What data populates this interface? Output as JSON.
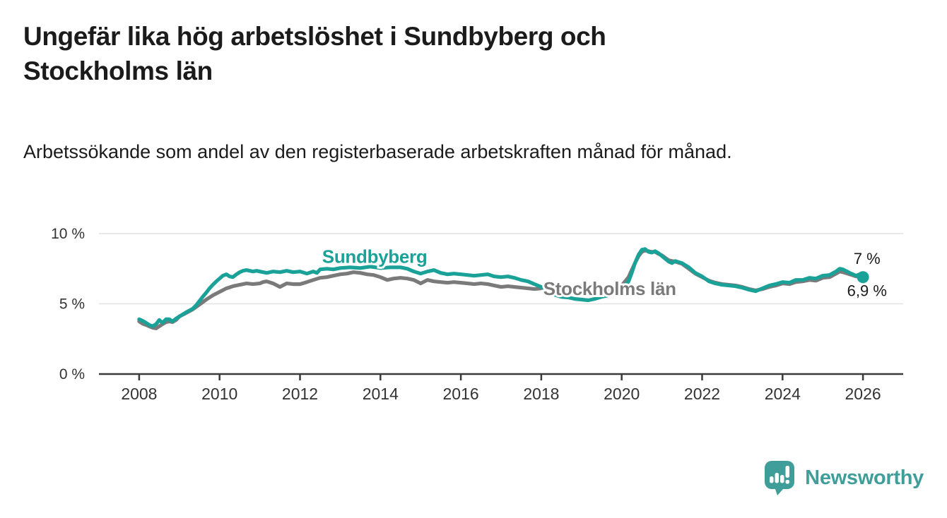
{
  "header": {
    "title": "Ungefär lika hög arbetslöshet i Sundbyberg och Stockholms län",
    "subtitle": "Arbetssökande som andel av den registerbaserade arbetskraften månad för månad."
  },
  "branding": {
    "name": "Newsworthy",
    "color": "#3f9e99"
  },
  "colors": {
    "background": "#ffffff",
    "teal": "#1aa299",
    "gray": "#7a7a7a",
    "text": "#1b1b1b",
    "axis": "#3a3a3a",
    "tick_label": "#333333",
    "gridline": "#e2e2e2",
    "annotation": "#1b1b1b"
  },
  "chart_data": {
    "type": "line",
    "title": "Ungefär lika hög arbetslöshet i Sundbyberg och Stockholms län",
    "subtitle": "Arbetssökande som andel av den registerbaserade arbetskraften månad för månad.",
    "unit": "%",
    "legend_position": "inline-labels",
    "grid": "horizontal-only",
    "x_axis": {
      "range": [
        2007,
        2027
      ],
      "ticks": [
        2008,
        2010,
        2012,
        2014,
        2016,
        2018,
        2020,
        2022,
        2024,
        2026
      ]
    },
    "y_axis": {
      "range": [
        0,
        10.5
      ],
      "ticks": [
        0,
        5,
        10
      ],
      "tick_labels": [
        "0 %",
        "5 %",
        "10 %"
      ]
    },
    "series": [
      {
        "name": "Stockholms län",
        "color": "#7a7a7a",
        "latest_value": 7.0,
        "end_label": "7 %",
        "end_label_pos": [
          2026.1,
          7.85
        ],
        "end_dot": false,
        "label_pos": [
          2018.05,
          5.62
        ],
        "label_anchor": "start",
        "points": [
          [
            2008.0,
            3.75
          ],
          [
            2008.08,
            3.6
          ],
          [
            2008.17,
            3.5
          ],
          [
            2008.25,
            3.4
          ],
          [
            2008.33,
            3.3
          ],
          [
            2008.42,
            3.25
          ],
          [
            2008.5,
            3.4
          ],
          [
            2008.58,
            3.55
          ],
          [
            2008.67,
            3.7
          ],
          [
            2008.75,
            3.75
          ],
          [
            2008.83,
            3.7
          ],
          [
            2008.92,
            3.85
          ],
          [
            2009.0,
            4.1
          ],
          [
            2009.17,
            4.35
          ],
          [
            2009.33,
            4.6
          ],
          [
            2009.5,
            4.95
          ],
          [
            2009.67,
            5.3
          ],
          [
            2009.83,
            5.6
          ],
          [
            2010.0,
            5.85
          ],
          [
            2010.17,
            6.1
          ],
          [
            2010.33,
            6.25
          ],
          [
            2010.5,
            6.35
          ],
          [
            2010.67,
            6.45
          ],
          [
            2010.83,
            6.4
          ],
          [
            2011.0,
            6.45
          ],
          [
            2011.08,
            6.55
          ],
          [
            2011.17,
            6.6
          ],
          [
            2011.33,
            6.45
          ],
          [
            2011.5,
            6.2
          ],
          [
            2011.67,
            6.45
          ],
          [
            2011.83,
            6.4
          ],
          [
            2012.0,
            6.4
          ],
          [
            2012.17,
            6.55
          ],
          [
            2012.33,
            6.7
          ],
          [
            2012.5,
            6.85
          ],
          [
            2012.67,
            6.9
          ],
          [
            2012.83,
            7.0
          ],
          [
            2013.0,
            7.1
          ],
          [
            2013.17,
            7.15
          ],
          [
            2013.33,
            7.25
          ],
          [
            2013.5,
            7.2
          ],
          [
            2013.67,
            7.1
          ],
          [
            2013.83,
            7.05
          ],
          [
            2014.0,
            6.9
          ],
          [
            2014.17,
            6.7
          ],
          [
            2014.33,
            6.8
          ],
          [
            2014.5,
            6.85
          ],
          [
            2014.67,
            6.8
          ],
          [
            2014.83,
            6.7
          ],
          [
            2015.0,
            6.45
          ],
          [
            2015.17,
            6.7
          ],
          [
            2015.33,
            6.6
          ],
          [
            2015.5,
            6.55
          ],
          [
            2015.67,
            6.5
          ],
          [
            2015.83,
            6.55
          ],
          [
            2016.0,
            6.5
          ],
          [
            2016.17,
            6.45
          ],
          [
            2016.33,
            6.4
          ],
          [
            2016.5,
            6.45
          ],
          [
            2016.67,
            6.4
          ],
          [
            2016.83,
            6.3
          ],
          [
            2017.0,
            6.2
          ],
          [
            2017.17,
            6.25
          ],
          [
            2017.33,
            6.2
          ],
          [
            2017.5,
            6.15
          ],
          [
            2017.67,
            6.1
          ],
          [
            2017.83,
            6.05
          ],
          [
            2018.0,
            6.1
          ],
          [
            2018.17,
            6.05
          ],
          [
            2018.33,
            6.0
          ],
          [
            2018.5,
            6.0
          ],
          [
            2018.67,
            5.95
          ],
          [
            2018.83,
            5.9
          ],
          [
            2019.0,
            5.9
          ],
          [
            2019.17,
            5.85
          ],
          [
            2019.33,
            5.9
          ],
          [
            2019.5,
            5.95
          ],
          [
            2019.67,
            6.0
          ],
          [
            2019.83,
            6.1
          ],
          [
            2020.0,
            6.3
          ],
          [
            2020.17,
            6.9
          ],
          [
            2020.25,
            7.4
          ],
          [
            2020.33,
            7.9
          ],
          [
            2020.42,
            8.4
          ],
          [
            2020.5,
            8.7
          ],
          [
            2020.58,
            8.8
          ],
          [
            2020.67,
            8.75
          ],
          [
            2020.75,
            8.7
          ],
          [
            2020.83,
            8.7
          ],
          [
            2020.92,
            8.55
          ],
          [
            2021.0,
            8.45
          ],
          [
            2021.17,
            8.1
          ],
          [
            2021.33,
            8.0
          ],
          [
            2021.5,
            7.85
          ],
          [
            2021.67,
            7.5
          ],
          [
            2021.83,
            7.15
          ],
          [
            2022.0,
            6.9
          ],
          [
            2022.17,
            6.65
          ],
          [
            2022.33,
            6.5
          ],
          [
            2022.5,
            6.4
          ],
          [
            2022.67,
            6.35
          ],
          [
            2022.83,
            6.3
          ],
          [
            2023.0,
            6.2
          ],
          [
            2023.17,
            6.05
          ],
          [
            2023.33,
            5.95
          ],
          [
            2023.5,
            6.05
          ],
          [
            2023.67,
            6.2
          ],
          [
            2023.83,
            6.3
          ],
          [
            2024.0,
            6.45
          ],
          [
            2024.17,
            6.4
          ],
          [
            2024.33,
            6.55
          ],
          [
            2024.5,
            6.6
          ],
          [
            2024.67,
            6.7
          ],
          [
            2024.83,
            6.65
          ],
          [
            2025.0,
            6.85
          ],
          [
            2025.17,
            6.9
          ],
          [
            2025.33,
            7.15
          ],
          [
            2025.42,
            7.3
          ],
          [
            2025.5,
            7.25
          ],
          [
            2025.67,
            7.1
          ],
          [
            2025.83,
            6.95
          ],
          [
            2026.0,
            7.0
          ]
        ]
      },
      {
        "name": "Sundbyberg",
        "color": "#1aa299",
        "latest_value": 6.9,
        "end_label": "6,9 %",
        "end_label_pos": [
          2026.1,
          5.55
        ],
        "end_dot": true,
        "label_pos": [
          2012.55,
          7.92
        ],
        "label_anchor": "start",
        "points": [
          [
            2008.0,
            3.9
          ],
          [
            2008.08,
            3.8
          ],
          [
            2008.17,
            3.65
          ],
          [
            2008.25,
            3.5
          ],
          [
            2008.33,
            3.4
          ],
          [
            2008.42,
            3.55
          ],
          [
            2008.5,
            3.85
          ],
          [
            2008.58,
            3.65
          ],
          [
            2008.67,
            3.9
          ],
          [
            2008.75,
            3.9
          ],
          [
            2008.83,
            3.75
          ],
          [
            2008.92,
            3.95
          ],
          [
            2009.0,
            4.1
          ],
          [
            2009.17,
            4.4
          ],
          [
            2009.33,
            4.65
          ],
          [
            2009.42,
            4.9
          ],
          [
            2009.5,
            5.2
          ],
          [
            2009.58,
            5.5
          ],
          [
            2009.67,
            5.8
          ],
          [
            2009.75,
            6.1
          ],
          [
            2009.83,
            6.35
          ],
          [
            2009.92,
            6.6
          ],
          [
            2010.0,
            6.8
          ],
          [
            2010.08,
            7.0
          ],
          [
            2010.17,
            7.1
          ],
          [
            2010.25,
            6.95
          ],
          [
            2010.33,
            6.9
          ],
          [
            2010.42,
            7.1
          ],
          [
            2010.5,
            7.25
          ],
          [
            2010.58,
            7.35
          ],
          [
            2010.67,
            7.4
          ],
          [
            2010.75,
            7.35
          ],
          [
            2010.83,
            7.3
          ],
          [
            2010.92,
            7.35
          ],
          [
            2011.0,
            7.3
          ],
          [
            2011.17,
            7.2
          ],
          [
            2011.33,
            7.3
          ],
          [
            2011.5,
            7.25
          ],
          [
            2011.67,
            7.35
          ],
          [
            2011.83,
            7.25
          ],
          [
            2012.0,
            7.3
          ],
          [
            2012.17,
            7.15
          ],
          [
            2012.33,
            7.3
          ],
          [
            2012.42,
            7.2
          ],
          [
            2012.5,
            7.45
          ],
          [
            2012.67,
            7.5
          ],
          [
            2012.83,
            7.45
          ],
          [
            2013.0,
            7.55
          ],
          [
            2013.25,
            7.6
          ],
          [
            2013.5,
            7.55
          ],
          [
            2013.75,
            7.65
          ],
          [
            2014.0,
            7.55
          ],
          [
            2014.25,
            7.6
          ],
          [
            2014.5,
            7.6
          ],
          [
            2014.67,
            7.5
          ],
          [
            2014.83,
            7.3
          ],
          [
            2015.0,
            7.15
          ],
          [
            2015.17,
            7.3
          ],
          [
            2015.33,
            7.4
          ],
          [
            2015.5,
            7.2
          ],
          [
            2015.67,
            7.1
          ],
          [
            2015.83,
            7.15
          ],
          [
            2016.0,
            7.1
          ],
          [
            2016.17,
            7.05
          ],
          [
            2016.33,
            7.0
          ],
          [
            2016.5,
            7.05
          ],
          [
            2016.67,
            7.1
          ],
          [
            2016.83,
            6.95
          ],
          [
            2017.0,
            6.9
          ],
          [
            2017.17,
            6.95
          ],
          [
            2017.33,
            6.85
          ],
          [
            2017.5,
            6.7
          ],
          [
            2017.67,
            6.6
          ],
          [
            2017.83,
            6.4
          ],
          [
            2018.0,
            6.2
          ],
          [
            2018.17,
            5.9
          ],
          [
            2018.33,
            5.65
          ],
          [
            2018.5,
            5.5
          ],
          [
            2018.67,
            5.45
          ],
          [
            2018.83,
            5.35
          ],
          [
            2019.0,
            5.3
          ],
          [
            2019.17,
            5.25
          ],
          [
            2019.33,
            5.35
          ],
          [
            2019.5,
            5.5
          ],
          [
            2019.67,
            5.6
          ],
          [
            2019.83,
            5.8
          ],
          [
            2020.0,
            6.0
          ],
          [
            2020.17,
            6.6
          ],
          [
            2020.25,
            7.2
          ],
          [
            2020.33,
            7.9
          ],
          [
            2020.42,
            8.5
          ],
          [
            2020.5,
            8.85
          ],
          [
            2020.58,
            8.9
          ],
          [
            2020.67,
            8.7
          ],
          [
            2020.75,
            8.65
          ],
          [
            2020.83,
            8.75
          ],
          [
            2020.92,
            8.6
          ],
          [
            2021.0,
            8.4
          ],
          [
            2021.17,
            8.0
          ],
          [
            2021.25,
            7.9
          ],
          [
            2021.33,
            8.05
          ],
          [
            2021.5,
            7.9
          ],
          [
            2021.67,
            7.6
          ],
          [
            2021.83,
            7.2
          ],
          [
            2022.0,
            6.95
          ],
          [
            2022.17,
            6.6
          ],
          [
            2022.33,
            6.45
          ],
          [
            2022.5,
            6.35
          ],
          [
            2022.67,
            6.3
          ],
          [
            2022.83,
            6.25
          ],
          [
            2023.0,
            6.15
          ],
          [
            2023.17,
            6.0
          ],
          [
            2023.33,
            5.9
          ],
          [
            2023.5,
            6.1
          ],
          [
            2023.67,
            6.3
          ],
          [
            2023.83,
            6.4
          ],
          [
            2024.0,
            6.55
          ],
          [
            2024.17,
            6.5
          ],
          [
            2024.33,
            6.7
          ],
          [
            2024.5,
            6.7
          ],
          [
            2024.67,
            6.85
          ],
          [
            2024.83,
            6.8
          ],
          [
            2025.0,
            7.0
          ],
          [
            2025.17,
            7.05
          ],
          [
            2025.33,
            7.3
          ],
          [
            2025.42,
            7.5
          ],
          [
            2025.5,
            7.45
          ],
          [
            2025.67,
            7.2
          ],
          [
            2025.83,
            7.0
          ],
          [
            2025.92,
            7.1
          ],
          [
            2026.0,
            6.9
          ]
        ]
      }
    ]
  }
}
